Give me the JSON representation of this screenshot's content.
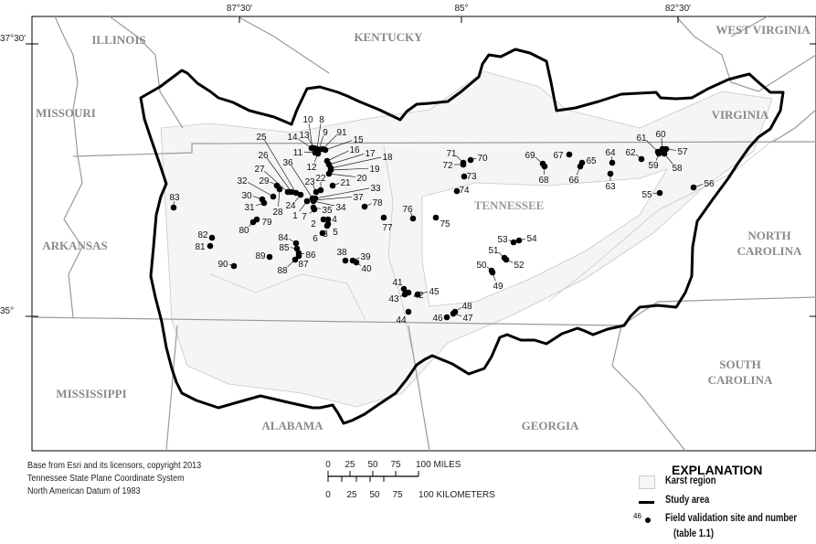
{
  "map": {
    "graticule": {
      "longitudes": [
        "87°30'",
        "85°",
        "82°30'"
      ],
      "latitudes": [
        "37°30'",
        "35°"
      ]
    },
    "states": [
      "ILLINOIS",
      "KENTUCKY",
      "WEST VIRGINIA",
      "MISSOURI",
      "VIRGINIA",
      "TENNESSEE",
      "ARKANSAS",
      "NORTH CAROLINA",
      "MISSISSIPPI",
      "ALABAMA",
      "GEORGIA",
      "SOUTH CAROLINA"
    ],
    "colors": {
      "karst": "#f4f5f7",
      "study_area": "#000000",
      "borders": "#999999",
      "site": "#000000"
    },
    "sites": [
      "1",
      "2",
      "3",
      "4",
      "5",
      "6",
      "7",
      "8",
      "9",
      "10",
      "11",
      "12",
      "13",
      "14",
      "15",
      "16",
      "17",
      "18",
      "19",
      "20",
      "21",
      "22",
      "23",
      "24",
      "25",
      "26",
      "27",
      "28",
      "29",
      "30",
      "31",
      "32",
      "33",
      "34",
      "35",
      "36",
      "37",
      "38",
      "39",
      "40",
      "41",
      "42",
      "43",
      "44",
      "45",
      "46",
      "47",
      "48",
      "49",
      "50",
      "51",
      "52",
      "53",
      "54",
      "55",
      "56",
      "57",
      "58",
      "59",
      "60",
      "61",
      "62",
      "63",
      "64",
      "65",
      "66",
      "67",
      "68",
      "69",
      "70",
      "71",
      "72",
      "73",
      "74",
      "75",
      "76",
      "77",
      "78",
      "79",
      "80",
      "81",
      "82",
      "83",
      "84",
      "85",
      "86",
      "87",
      "88",
      "89",
      "90",
      "91"
    ]
  },
  "credits": {
    "lines": [
      "Base from Esri and its licensors, copyright 2013",
      "Tennessee State Plane Coordinate System",
      "North American Datum of 1983"
    ]
  },
  "scale": {
    "miles_ticks": [
      "0",
      "25",
      "50",
      "75",
      "100 MILES"
    ],
    "km_ticks": [
      "0",
      "25",
      "50",
      "75",
      "100 KILOMETERS"
    ]
  },
  "legend": {
    "title": "EXPLANATION",
    "karst": "Karst region",
    "study_area": "Study area",
    "site_example_number": "46",
    "site_line1": "Field validation site and number",
    "site_line2": "(table 1.1)"
  }
}
